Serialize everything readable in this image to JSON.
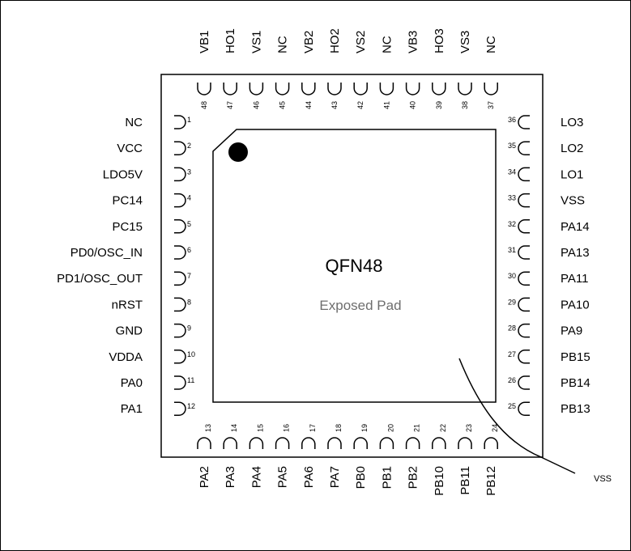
{
  "package": {
    "name": "QFN48",
    "pad_label": "Exposed Pad",
    "pad_callout": "VSS"
  },
  "pins": {
    "left": [
      {
        "num": "1",
        "name": "NC"
      },
      {
        "num": "2",
        "name": "VCC"
      },
      {
        "num": "3",
        "name": "LDO5V"
      },
      {
        "num": "4",
        "name": "PC14"
      },
      {
        "num": "5",
        "name": "PC15"
      },
      {
        "num": "6",
        "name": "PD0/OSC_IN"
      },
      {
        "num": "7",
        "name": "PD1/OSC_OUT"
      },
      {
        "num": "8",
        "name": "nRST"
      },
      {
        "num": "9",
        "name": "GND"
      },
      {
        "num": "10",
        "name": "VDDA"
      },
      {
        "num": "11",
        "name": "PA0"
      },
      {
        "num": "12",
        "name": "PA1"
      }
    ],
    "bottom": [
      {
        "num": "13",
        "name": "PA2"
      },
      {
        "num": "14",
        "name": "PA3"
      },
      {
        "num": "15",
        "name": "PA4"
      },
      {
        "num": "16",
        "name": "PA5"
      },
      {
        "num": "17",
        "name": "PA6"
      },
      {
        "num": "18",
        "name": "PA7"
      },
      {
        "num": "19",
        "name": "PB0"
      },
      {
        "num": "20",
        "name": "PB1"
      },
      {
        "num": "21",
        "name": "PB2"
      },
      {
        "num": "22",
        "name": "PB10"
      },
      {
        "num": "23",
        "name": "PB11"
      },
      {
        "num": "24",
        "name": "PB12"
      }
    ],
    "right": [
      {
        "num": "25",
        "name": "PB13"
      },
      {
        "num": "26",
        "name": "PB14"
      },
      {
        "num": "27",
        "name": "PB15"
      },
      {
        "num": "28",
        "name": "PA9"
      },
      {
        "num": "29",
        "name": "PA10"
      },
      {
        "num": "30",
        "name": "PA11"
      },
      {
        "num": "31",
        "name": "PA13"
      },
      {
        "num": "32",
        "name": "PA14"
      },
      {
        "num": "33",
        "name": "VSS"
      },
      {
        "num": "34",
        "name": "LO1"
      },
      {
        "num": "35",
        "name": "LO2"
      },
      {
        "num": "36",
        "name": "LO3"
      }
    ],
    "top": [
      {
        "num": "37",
        "name": "NC"
      },
      {
        "num": "38",
        "name": "VS3"
      },
      {
        "num": "39",
        "name": "HO3"
      },
      {
        "num": "40",
        "name": "VB3"
      },
      {
        "num": "41",
        "name": "NC"
      },
      {
        "num": "42",
        "name": "VS2"
      },
      {
        "num": "43",
        "name": "HO2"
      },
      {
        "num": "44",
        "name": "VB2"
      },
      {
        "num": "45",
        "name": "NC"
      },
      {
        "num": "46",
        "name": "VS1"
      },
      {
        "num": "47",
        "name": "HO1"
      },
      {
        "num": "48",
        "name": "VB1"
      }
    ]
  }
}
